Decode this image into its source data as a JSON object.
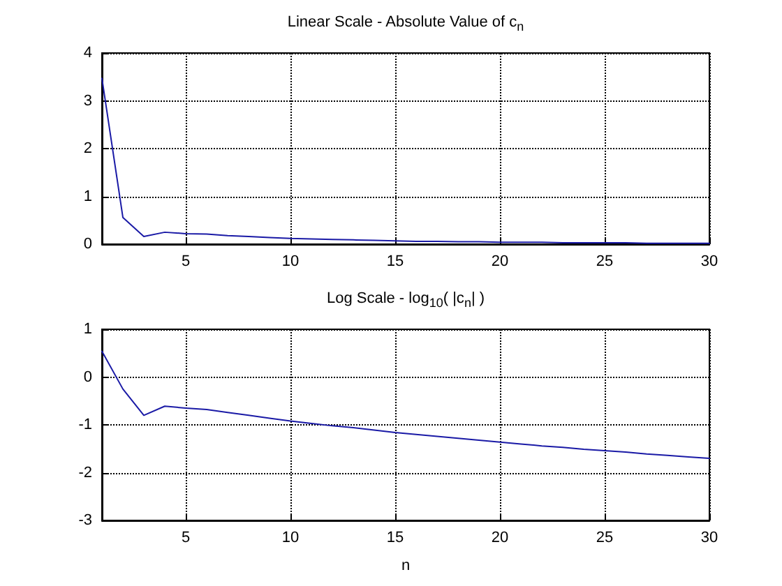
{
  "chart_data": [
    {
      "type": "line",
      "title": "Linear Scale - Absolute Value of c$_{n}$",
      "x": [
        1,
        2,
        3,
        4,
        5,
        6,
        7,
        8,
        9,
        10,
        11,
        12,
        13,
        14,
        15,
        16,
        17,
        18,
        19,
        20,
        21,
        22,
        23,
        24,
        25,
        26,
        27,
        28,
        29,
        30
      ],
      "values": [
        3.47,
        0.56,
        0.16,
        0.25,
        0.22,
        0.21,
        0.18,
        0.16,
        0.14,
        0.12,
        0.11,
        0.1,
        0.09,
        0.08,
        0.07,
        0.06,
        0.06,
        0.05,
        0.05,
        0.04,
        0.04,
        0.04,
        0.03,
        0.03,
        0.03,
        0.03,
        0.02,
        0.02,
        0.02,
        0.02
      ],
      "color": "#1a1aa6",
      "xlim": [
        1,
        30
      ],
      "xticks": [
        5,
        10,
        15,
        20,
        25,
        30
      ],
      "ylim": [
        0,
        4
      ],
      "yticks": [
        0,
        1,
        2,
        3,
        4
      ],
      "grid": true,
      "marker": "none",
      "line_style": "solid"
    },
    {
      "type": "line",
      "title": "Log Scale - log$_{10}$( |c$_{n}$| )",
      "xlabel": "n",
      "x": [
        1,
        2,
        3,
        4,
        5,
        6,
        7,
        8,
        9,
        10,
        11,
        12,
        13,
        14,
        15,
        16,
        17,
        18,
        19,
        20,
        21,
        22,
        23,
        24,
        25,
        26,
        27,
        28,
        29,
        30
      ],
      "values": [
        0.54,
        -0.25,
        -0.8,
        -0.61,
        -0.65,
        -0.68,
        -0.74,
        -0.8,
        -0.86,
        -0.92,
        -0.97,
        -1.02,
        -1.06,
        -1.11,
        -1.16,
        -1.2,
        -1.24,
        -1.28,
        -1.32,
        -1.36,
        -1.4,
        -1.44,
        -1.47,
        -1.51,
        -1.54,
        -1.57,
        -1.61,
        -1.64,
        -1.67,
        -1.7
      ],
      "color": "#1a1aa6",
      "xlim": [
        1,
        30
      ],
      "xticks": [
        5,
        10,
        15,
        20,
        25,
        30
      ],
      "ylim": [
        -3,
        1
      ],
      "yticks": [
        -3,
        -2,
        -1,
        0,
        1
      ],
      "grid": true,
      "marker": "none",
      "line_style": "solid"
    }
  ]
}
